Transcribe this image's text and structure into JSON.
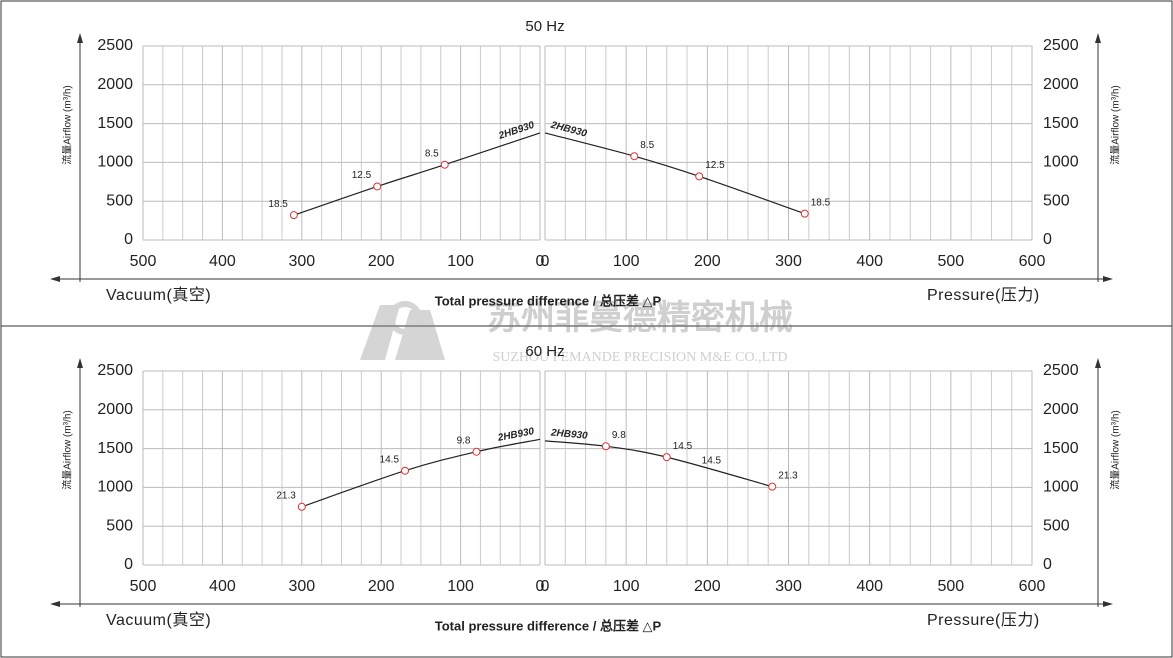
{
  "watermark": {
    "cn": "苏州菲曼德精密机械",
    "en": "SUZHOU FEMANDE PRECISION M&E CO.,LTD"
  },
  "chart_data": [
    {
      "type": "line",
      "title": "50 Hz",
      "xlabel": "Vacuum(真空)",
      "annotation": "Total pressure difference / 总压差 △P",
      "ylabel": "流量Airflow (m³/h)",
      "xlim": [
        500,
        0
      ],
      "xticks": [
        500,
        400,
        300,
        200,
        100,
        0
      ],
      "ylim": [
        0,
        2500
      ],
      "yticks": [
        0,
        500,
        1000,
        1500,
        2000,
        2500
      ],
      "grid": true,
      "series": [
        {
          "name": "2HB930",
          "color": "#222222",
          "x": [
            310,
            205,
            120,
            0
          ],
          "values": [
            320,
            690,
            970,
            1380
          ],
          "value_labels": [
            "18.5",
            "12.5",
            "8.5",
            null
          ]
        }
      ]
    },
    {
      "type": "line",
      "xlabel": "Pressure(压力)",
      "ylabel": "流量Airflow (m³/h)",
      "xlim": [
        0,
        600
      ],
      "xticks": [
        0,
        100,
        200,
        300,
        400,
        500,
        600
      ],
      "ylim": [
        0,
        2500
      ],
      "yticks": [
        0,
        500,
        1000,
        1500,
        2000,
        2500
      ],
      "grid": true,
      "series": [
        {
          "name": "2HB930",
          "color": "#222222",
          "x": [
            0,
            110,
            190,
            320
          ],
          "values": [
            1380,
            1080,
            820,
            340
          ],
          "value_labels": [
            null,
            "8.5",
            "12.5",
            "18.5"
          ]
        }
      ]
    },
    {
      "type": "line",
      "title": "60 Hz",
      "xlabel": "Vacuum(真空)",
      "annotation": "Total pressure difference / 总压差 △P",
      "ylabel": "流量Airflow (m³/h)",
      "xlim": [
        500,
        0
      ],
      "xticks": [
        500,
        400,
        300,
        200,
        100,
        0
      ],
      "ylim": [
        0,
        2500
      ],
      "yticks": [
        0,
        500,
        1000,
        1500,
        2000,
        2500
      ],
      "grid": true,
      "series": [
        {
          "name": "2HB930",
          "color": "#222222",
          "x": [
            300,
            170,
            80,
            0
          ],
          "values": [
            750,
            1215,
            1460,
            1620
          ],
          "value_labels": [
            "21.3",
            "14.5",
            "9.8",
            null
          ]
        }
      ]
    },
    {
      "type": "line",
      "xlabel": "Pressure(压力)",
      "ylabel": "流量Airflow (m³/h)",
      "xlim": [
        0,
        600
      ],
      "xticks": [
        0,
        100,
        200,
        300,
        400,
        500,
        600
      ],
      "ylim": [
        0,
        2500
      ],
      "yticks": [
        0,
        500,
        1000,
        1500,
        2000,
        2500
      ],
      "grid": true,
      "annotations": [
        {
          "text": "14.5",
          "x": 205,
          "y": 1340
        }
      ],
      "series": [
        {
          "name": "2HB930",
          "color": "#222222",
          "x": [
            0,
            75,
            150,
            280
          ],
          "values": [
            1600,
            1530,
            1390,
            1010
          ],
          "value_labels": [
            null,
            "9.8",
            "14.5",
            "21.3"
          ]
        }
      ]
    }
  ]
}
